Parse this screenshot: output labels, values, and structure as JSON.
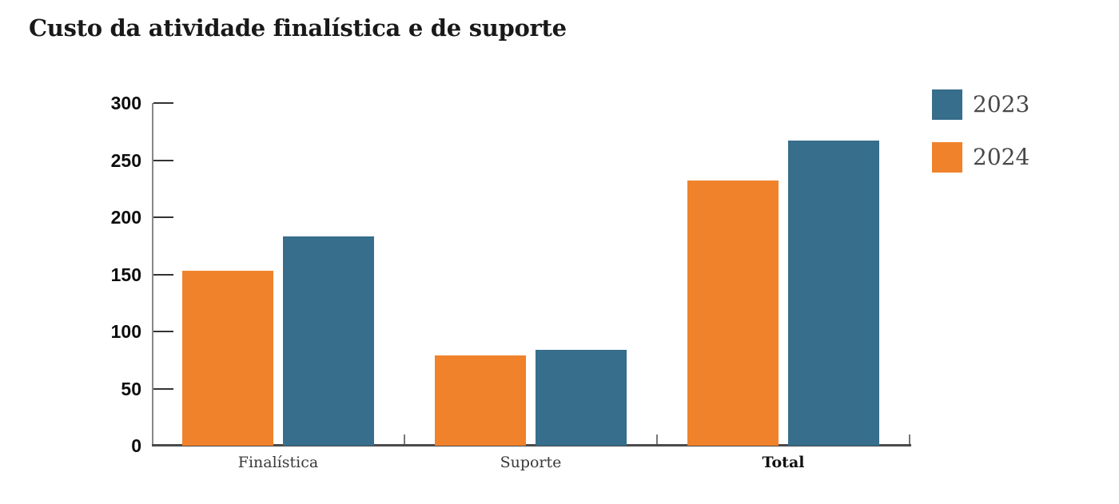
{
  "title": "Custo da atividade finalística e de suporte",
  "chart_data": {
    "type": "bar",
    "title": "Custo da atividade finalística e de suporte",
    "categories": [
      "Finalística",
      "Suporte",
      "Total"
    ],
    "series": [
      {
        "name": "2024",
        "color": "#F0822B",
        "values": [
          153,
          79,
          232
        ]
      },
      {
        "name": "2023",
        "color": "#366E8C",
        "values": [
          183,
          84,
          267
        ]
      }
    ],
    "legend": [
      {
        "label": "2023",
        "color": "#366E8C"
      },
      {
        "label": "2024",
        "color": "#F0822B"
      }
    ],
    "legend_position": "top-right",
    "xlabel": "",
    "ylabel": "",
    "ylim": [
      0,
      300
    ],
    "yticks": [
      0,
      50,
      100,
      150,
      200,
      250,
      300
    ],
    "grid": false,
    "emphasized_categories": [
      "Total"
    ],
    "axis_colors": {
      "y_axis_line": "#888888",
      "x_axis_line": "#4a4a4a",
      "tick": "#333333"
    }
  }
}
